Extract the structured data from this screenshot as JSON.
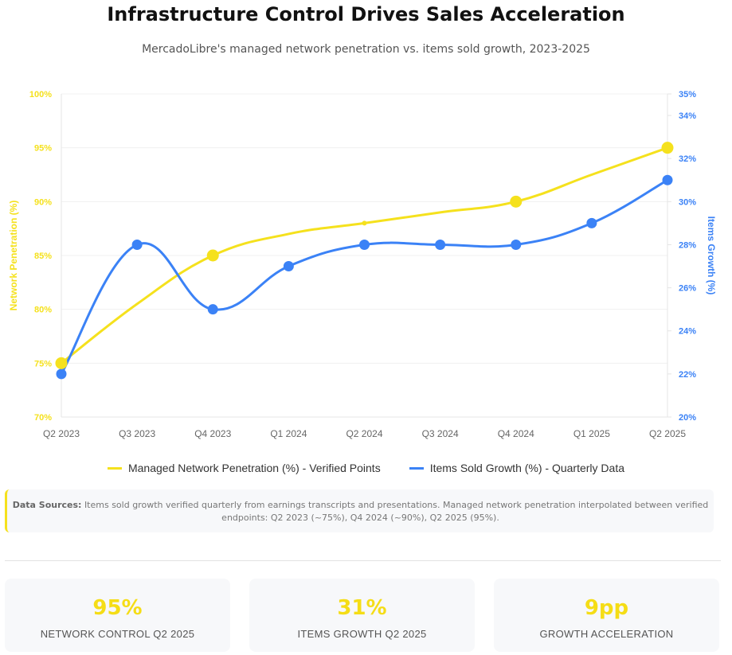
{
  "header": {
    "title": "Infrastructure Control Drives Sales Acceleration",
    "subtitle": "MercadoLibre's managed network penetration vs. items sold growth, 2023-2025"
  },
  "chart_data": {
    "type": "line",
    "categories": [
      "Q2 2023",
      "Q3 2023",
      "Q4 2023",
      "Q1 2024",
      "Q2 2024",
      "Q3 2024",
      "Q4 2024",
      "Q1 2025",
      "Q2 2025"
    ],
    "series": [
      {
        "name": "Managed Network Penetration (%) - Verified Points",
        "axis": "left",
        "color": "#f5e11d",
        "values": [
          75,
          80.5,
          85,
          87,
          88,
          89,
          90,
          92.5,
          95
        ],
        "marked": [
          true,
          false,
          true,
          false,
          true,
          false,
          true,
          false,
          true
        ]
      },
      {
        "name": "Items Sold Growth (%) - Quarterly Data",
        "axis": "right",
        "color": "#3b82f6",
        "values": [
          22,
          28,
          25,
          27,
          28,
          28,
          28,
          29,
          31
        ]
      }
    ],
    "y_left": {
      "label": "Network Penetration (%)",
      "range": [
        70,
        100
      ],
      "ticks": [
        "70%",
        "75%",
        "80%",
        "85%",
        "90%",
        "95%",
        "100%"
      ]
    },
    "y_right": {
      "label": "Items Growth (%)",
      "range": [
        20,
        35
      ],
      "ticks": [
        "20%",
        "22%",
        "24%",
        "26%",
        "28%",
        "30%",
        "32%",
        "34%",
        "35%"
      ]
    },
    "grid": true,
    "legend": "bottom"
  },
  "sources": {
    "label": "Data Sources:",
    "text": "Items sold growth verified quarterly from earnings transcripts and presentations. Managed network penetration interpolated between verified endpoints: Q2 2023 (~75%), Q4 2024 (~90%), Q2 2025 (95%)."
  },
  "cards": [
    {
      "value": "95%",
      "label": "NETWORK CONTROL Q2 2025"
    },
    {
      "value": "31%",
      "label": "ITEMS GROWTH Q2 2025"
    },
    {
      "value": "9pp",
      "label": "GROWTH ACCELERATION"
    }
  ]
}
